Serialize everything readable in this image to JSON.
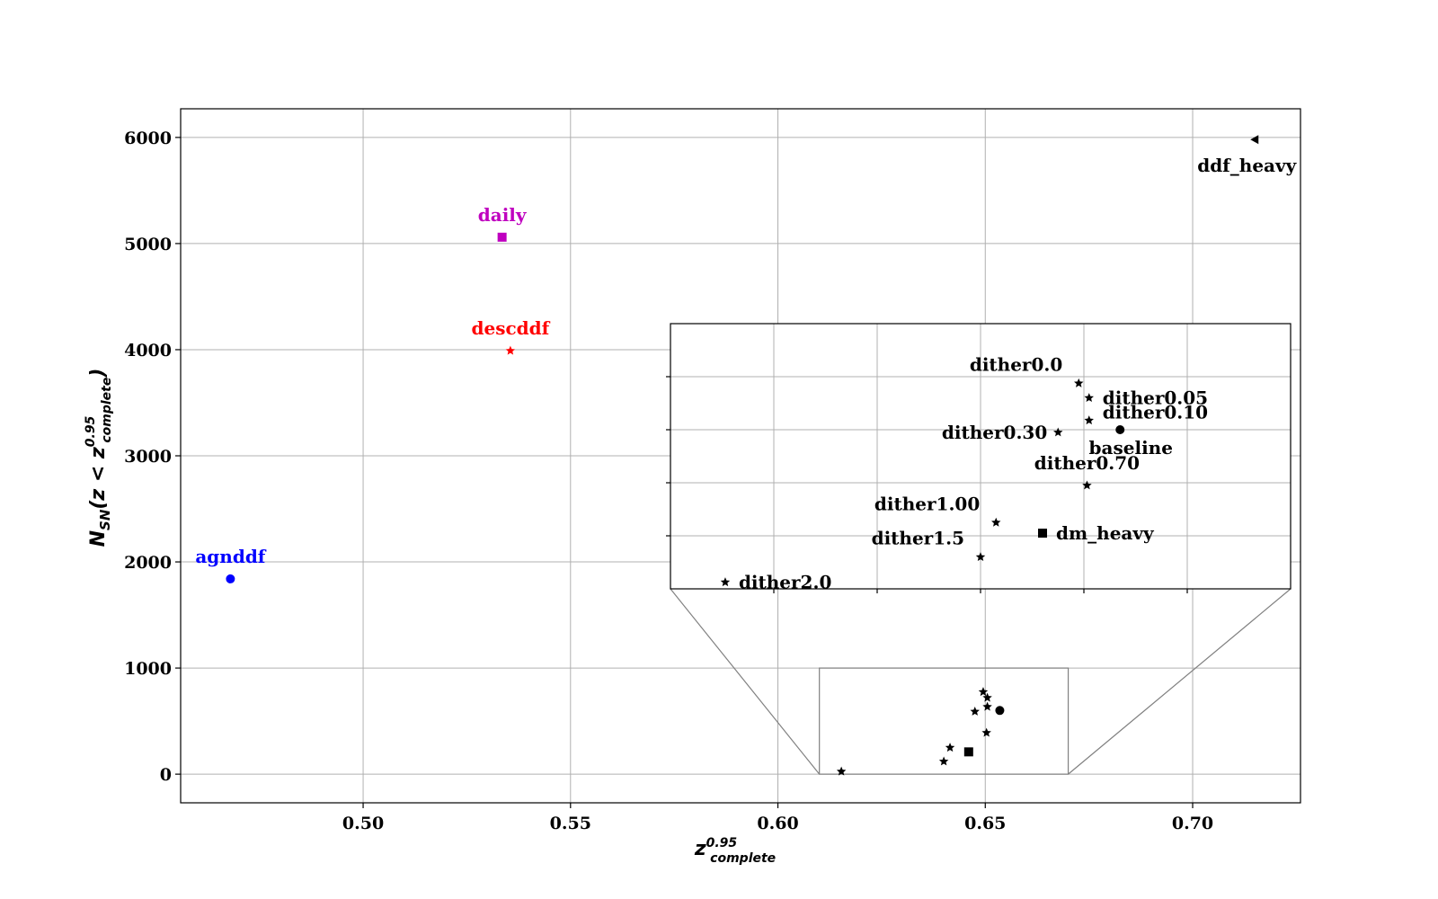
{
  "chart_data": {
    "type": "scatter",
    "title": "",
    "xlabel": {
      "base": "z",
      "sup": "0.95",
      "sub": "complete"
    },
    "ylabel": {
      "prefix": "N",
      "prefix_sub": "SN",
      "open": "(z < z",
      "sup": "0.95",
      "sub": "complete",
      "close": ")"
    },
    "xlim": [
      0.456,
      0.726
    ],
    "ylim": [
      -270,
      6270
    ],
    "xticks": [
      0.5,
      0.55,
      0.6,
      0.65,
      0.7
    ],
    "xtick_labels": [
      "0.50",
      "0.55",
      "0.60",
      "0.65",
      "0.70"
    ],
    "yticks": [
      0,
      1000,
      2000,
      3000,
      4000,
      5000,
      6000
    ],
    "ytick_labels": [
      "0",
      "1000",
      "2000",
      "3000",
      "4000",
      "5000",
      "6000"
    ],
    "grid": true,
    "points": [
      {
        "label": "agnddf",
        "x": 0.468,
        "y": 1840,
        "marker": "circle",
        "color": "#0000ff",
        "label_pos": "above"
      },
      {
        "label": "daily",
        "x": 0.5335,
        "y": 5060,
        "marker": "square",
        "color": "#bf00bf",
        "label_pos": "above"
      },
      {
        "label": "descddf",
        "x": 0.5355,
        "y": 3990,
        "marker": "star",
        "color": "#ff0000",
        "label_pos": "above"
      },
      {
        "label": "ddf_heavy",
        "x": 0.715,
        "y": 5980,
        "marker": "triangle-left",
        "color": "#000000",
        "label_pos": "below-left"
      },
      {
        "label": "baseline",
        "x": 0.6535,
        "y": 600,
        "marker": "circle",
        "color": "#000000",
        "label_pos": "below-right"
      },
      {
        "label": "dm_heavy",
        "x": 0.646,
        "y": 210,
        "marker": "square",
        "color": "#000000",
        "label_pos": "right"
      },
      {
        "label": "dither0.0",
        "x": 0.6495,
        "y": 775,
        "marker": "star",
        "color": "#000000",
        "label_pos": "above-left"
      },
      {
        "label": "dither0.05",
        "x": 0.6505,
        "y": 720,
        "marker": "star",
        "color": "#000000",
        "label_pos": "right"
      },
      {
        "label": "dither0.10",
        "x": 0.6505,
        "y": 635,
        "marker": "star",
        "color": "#000000",
        "label_pos": "right-up"
      },
      {
        "label": "dither0.30",
        "x": 0.6475,
        "y": 590,
        "marker": "star",
        "color": "#000000",
        "label_pos": "left"
      },
      {
        "label": "dither0.70",
        "x": 0.6503,
        "y": 390,
        "marker": "star",
        "color": "#000000",
        "label_pos": "above"
      },
      {
        "label": "dither1.00",
        "x": 0.6415,
        "y": 250,
        "marker": "star",
        "color": "#000000",
        "label_pos": "above-left"
      },
      {
        "label": "dither1.5",
        "x": 0.64,
        "y": 120,
        "marker": "star",
        "color": "#000000",
        "label_pos": "above-left"
      },
      {
        "label": "dither2.0",
        "x": 0.6153,
        "y": 25,
        "marker": "star",
        "color": "#000000",
        "label_pos": "right"
      }
    ],
    "inset": {
      "xlim": [
        0.61,
        0.67
      ],
      "ylim": [
        0,
        1000
      ],
      "xticks": [
        0.62,
        0.63,
        0.64,
        0.65,
        0.66
      ],
      "yticks": [
        200,
        400,
        600,
        800
      ],
      "show_tick_labels": false,
      "labeled_points": [
        "baseline",
        "dm_heavy",
        "dither0.0",
        "dither0.05",
        "dither0.10",
        "dither0.30",
        "dither0.70",
        "dither1.00",
        "dither1.5",
        "dither2.0"
      ]
    }
  }
}
